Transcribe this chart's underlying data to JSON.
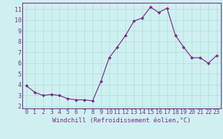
{
  "x": [
    0,
    1,
    2,
    3,
    4,
    5,
    6,
    7,
    8,
    9,
    10,
    11,
    12,
    13,
    14,
    15,
    16,
    17,
    18,
    19,
    20,
    21,
    22,
    23
  ],
  "y": [
    3.9,
    3.3,
    3.0,
    3.1,
    3.0,
    2.7,
    2.6,
    2.6,
    2.5,
    4.3,
    6.5,
    7.5,
    8.6,
    9.9,
    10.2,
    11.2,
    10.7,
    11.1,
    8.6,
    7.5,
    6.5,
    6.5,
    6.0,
    6.7
  ],
  "line_color": "#7b2d8b",
  "marker": "D",
  "marker_size": 2.0,
  "xlabel": "Windchill (Refroidissement éolien,°C)",
  "xlim": [
    -0.5,
    23.5
  ],
  "ylim": [
    1.8,
    11.6
  ],
  "yticks": [
    2,
    3,
    4,
    5,
    6,
    7,
    8,
    9,
    10,
    11
  ],
  "xticks": [
    0,
    1,
    2,
    3,
    4,
    5,
    6,
    7,
    8,
    9,
    10,
    11,
    12,
    13,
    14,
    15,
    16,
    17,
    18,
    19,
    20,
    21,
    22,
    23
  ],
  "bg_color": "#cff0f0",
  "grid_color": "#aadddd",
  "line_label_color": "#7b2d8b",
  "xlabel_fontsize": 6.5,
  "tick_fontsize": 6.0,
  "linewidth": 0.9
}
